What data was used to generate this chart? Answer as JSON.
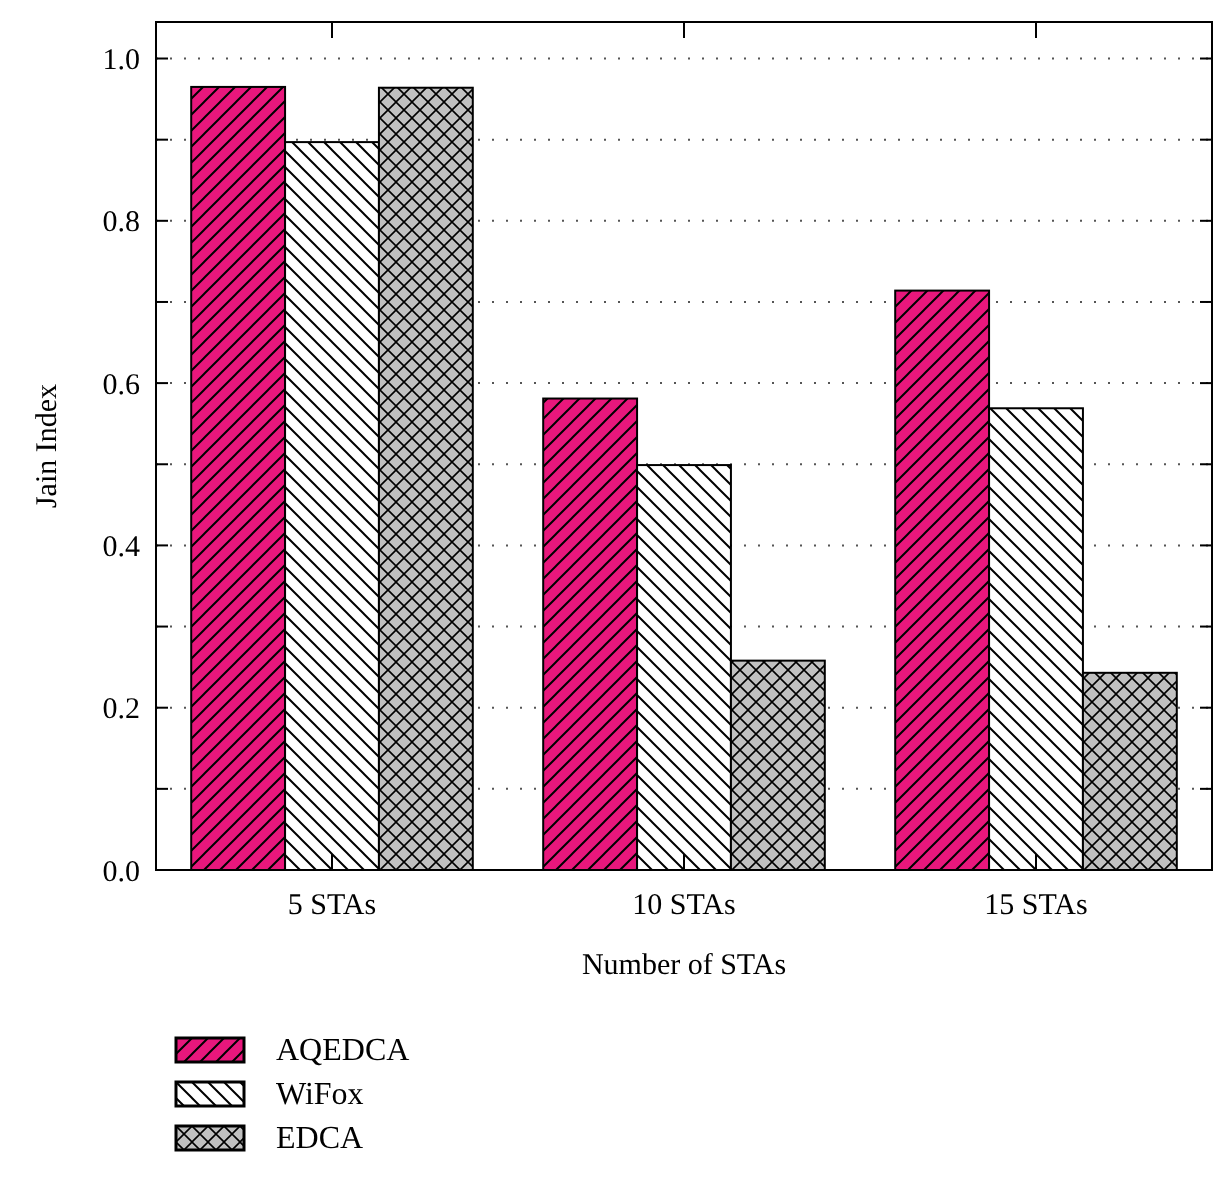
{
  "chart_data": {
    "type": "bar",
    "xlabel": "Number of STAs",
    "ylabel": "Jain Index",
    "categories": [
      "5 STAs",
      "10 STAs",
      "15 STAs"
    ],
    "series": [
      {
        "name": "AQEDCA",
        "color": "#e8177c",
        "values": [
          0.965,
          0.581,
          0.714
        ]
      },
      {
        "name": "WiFox",
        "color": "#ffffff",
        "values": [
          0.897,
          0.499,
          0.569
        ]
      },
      {
        "name": "EDCA",
        "color": "#c0c0c0",
        "values": [
          0.964,
          0.258,
          0.243
        ]
      }
    ],
    "ylim": [
      0,
      1.045
    ],
    "yticks": [
      {
        "value": 0,
        "label": "0.0"
      },
      {
        "value": 0.1,
        "label": null
      },
      0.2,
      {
        "value": 0.3,
        "label": null
      },
      0.4,
      {
        "value": 0.5,
        "label": null
      },
      0.6,
      {
        "value": 0.7,
        "label": null
      },
      0.8,
      {
        "value": 0.9,
        "label": null
      },
      {
        "value": 1,
        "label": "1.0"
      }
    ],
    "grid": "y",
    "legend": "bottom left"
  }
}
